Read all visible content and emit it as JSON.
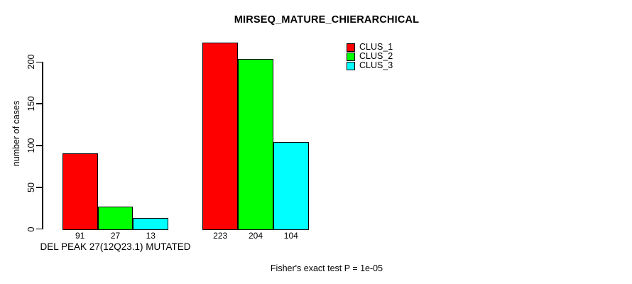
{
  "chart_data": {
    "type": "bar",
    "title": "MIRSEQ_MATURE_CHIERARCHICAL",
    "ylabel": "number of cases",
    "xlabel": "",
    "ylim": [
      0,
      230
    ],
    "yticks": [
      0,
      50,
      100,
      150,
      200
    ],
    "grid": false,
    "legend_position": "top-right",
    "series": [
      {
        "name": "CLUS_1",
        "color": "#ff0000"
      },
      {
        "name": "CLUS_2",
        "color": "#00ff00"
      },
      {
        "name": "CLUS_3",
        "color": "#00ffff"
      }
    ],
    "groups": [
      {
        "label": "DEL PEAK 27(12Q23.1) MUTATED",
        "values": [
          91,
          27,
          13
        ]
      },
      {
        "label": "",
        "values": [
          223,
          204,
          104
        ]
      }
    ],
    "bar_border_color": "#000000",
    "background_color": "#ffffff",
    "annotation": "Fisher's exact test P = 1e-05"
  }
}
